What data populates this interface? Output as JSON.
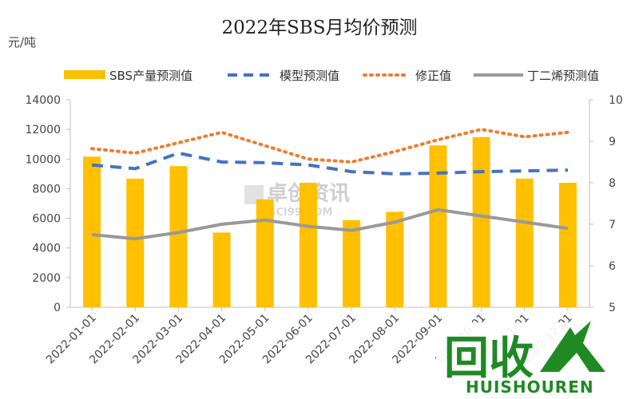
{
  "chart_data": {
    "type": "bar",
    "title": "2022年SBS月均价预测",
    "ylabel": "元/吨",
    "y2label": "",
    "categories": [
      "2022-01-01",
      "2022-02-01",
      "2022-03-01",
      "2022-04-01",
      "2022-05-01",
      "2022-06-01",
      "2022-07-01",
      "2022-08-01",
      "2022-09-01",
      "2022-10-01",
      "2022-11-01",
      "2022-12-01"
    ],
    "ylim": [
      0,
      14000
    ],
    "y_ticks": [
      0,
      2000,
      4000,
      6000,
      8000,
      10000,
      12000,
      14000
    ],
    "y2lim": [
      5,
      10
    ],
    "y2_ticks": [
      5,
      6,
      7,
      8,
      9,
      10
    ],
    "grid": false,
    "legend_position": "top",
    "series": [
      {
        "name": "SBS产量预测值",
        "type": "bar",
        "axis": "right",
        "color": "#FFC000",
        "values": [
          8.63,
          8.1,
          8.4,
          6.8,
          7.6,
          8.0,
          7.1,
          7.3,
          8.9,
          9.1,
          8.1,
          8.0
        ]
      },
      {
        "name": "模型预测值",
        "type": "line-dashed",
        "axis": "left",
        "color": "#4472C4",
        "values": [
          9600,
          9350,
          10400,
          9800,
          9750,
          9600,
          9150,
          9000,
          9050,
          9150,
          9200,
          9250
        ]
      },
      {
        "name": "修正值",
        "type": "line-dotted",
        "axis": "left",
        "color": "#ED7D31",
        "values": [
          10700,
          10400,
          11100,
          11800,
          10900,
          10000,
          9800,
          10500,
          11300,
          12000,
          11500,
          11800
        ]
      },
      {
        "name": "丁二烯预测值",
        "type": "line",
        "axis": "right",
        "color": "#999999",
        "values": [
          6.75,
          6.65,
          6.8,
          7.0,
          7.1,
          6.95,
          6.85,
          7.05,
          7.35,
          7.2,
          7.05,
          6.9
        ]
      }
    ]
  },
  "watermark": {
    "main": "卓创资讯",
    "sub": "SCI99.COM"
  },
  "brand": {
    "main": "回收",
    "sub": "HUISHOUREN"
  }
}
